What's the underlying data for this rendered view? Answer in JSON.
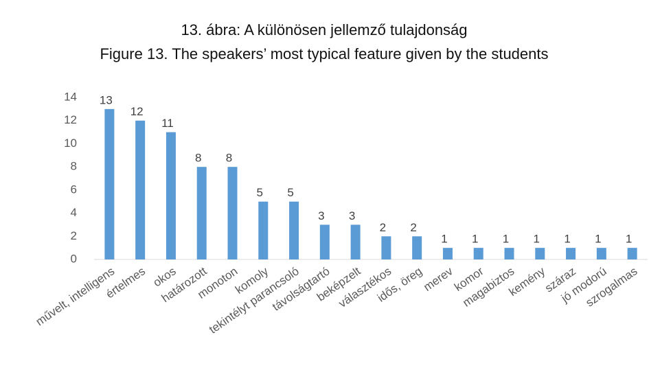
{
  "chart_data": {
    "type": "bar",
    "title": "13. ábra: A különösen jellemző tulajdonság",
    "subtitle": "Figure 13. The speakers’ most typical feature given by the students",
    "categories": [
      "művelt, intelligens",
      "értelmes",
      "okos",
      "határozott",
      "monoton",
      "komoly",
      "tekintélyt parancsoló",
      "távolságtartó",
      "beképzelt",
      "választékos",
      "idős, öreg",
      "merev",
      "komor",
      "magabiztos",
      "kemény",
      "száraz",
      "jó modorú",
      "szrogalmas"
    ],
    "values": [
      13,
      12,
      11,
      8,
      8,
      5,
      5,
      3,
      3,
      2,
      2,
      1,
      1,
      1,
      1,
      1,
      1,
      1
    ],
    "color": "#5b9bd5",
    "ylim": [
      0,
      14
    ],
    "yticks": [
      0,
      2,
      4,
      6,
      8,
      10,
      12,
      14
    ],
    "grid": false,
    "data_labels": true
  }
}
